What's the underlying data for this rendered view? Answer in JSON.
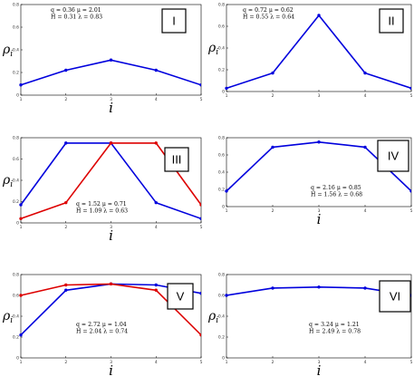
{
  "chart_data": [
    {
      "type": "line",
      "panel_label": "I",
      "xlabel": "i",
      "ylabel": "ρi",
      "x": [
        1,
        2,
        3,
        4,
        5
      ],
      "xticks": [
        "1",
        "2",
        "3",
        "4",
        "5"
      ],
      "yticks": [
        "0",
        "0.2",
        "0.4",
        "0.6",
        "0.8"
      ],
      "ylim": [
        0,
        0.8
      ],
      "params": [
        "q = 0.36   μ = 2.01",
        "H = 0.31   λ = 0.83"
      ],
      "series": [
        {
          "color": "#0000dd",
          "values": [
            0.09,
            0.22,
            0.31,
            0.22,
            0.09
          ]
        }
      ]
    },
    {
      "type": "line",
      "panel_label": "II",
      "xlabel": "",
      "ylabel": "ρi",
      "x": [
        1,
        2,
        3,
        4,
        5
      ],
      "xticks": [
        "1",
        "2",
        "3",
        "4",
        "5"
      ],
      "yticks": [
        "0",
        "0.2",
        "0.4",
        "0.6",
        "0.8"
      ],
      "ylim": [
        0,
        0.8
      ],
      "params": [
        "q = 0.72   μ = 0.62",
        "H = 0.55   λ = 0.64"
      ],
      "series": [
        {
          "color": "#0000dd",
          "values": [
            0.03,
            0.17,
            0.7,
            0.17,
            0.03
          ]
        }
      ]
    },
    {
      "type": "line",
      "panel_label": "III",
      "xlabel": "i",
      "ylabel": "ρi",
      "x": [
        1,
        2,
        3,
        4,
        5
      ],
      "xticks": [
        "1",
        "2",
        "3",
        "4",
        "5"
      ],
      "yticks": [
        "0",
        "0.2",
        "0.4",
        "0.6",
        "0.8"
      ],
      "ylim": [
        0,
        0.8
      ],
      "params": [
        "q = 1.52   μ = 0.71",
        "H = 1.09   λ = 0.63"
      ],
      "series": [
        {
          "color": "#0000dd",
          "values": [
            0.17,
            0.75,
            0.75,
            0.19,
            0.04
          ]
        },
        {
          "color": "#dd0000",
          "values": [
            0.04,
            0.19,
            0.75,
            0.75,
            0.17
          ]
        }
      ]
    },
    {
      "type": "line",
      "panel_label": "IV",
      "xlabel": "i",
      "ylabel": "",
      "x": [
        1,
        2,
        3,
        4,
        5
      ],
      "xticks": [
        "1",
        "2",
        "3",
        "4",
        "5"
      ],
      "yticks": [
        "0",
        "0.2",
        "0.4",
        "0.6",
        "0.8"
      ],
      "ylim": [
        0,
        0.8
      ],
      "params": [
        "q = 2.16   μ = 0.85",
        "H = 1.56   λ = 0.68"
      ],
      "series": [
        {
          "color": "#0000dd",
          "values": [
            0.18,
            0.69,
            0.75,
            0.69,
            0.18
          ]
        }
      ]
    },
    {
      "type": "line",
      "panel_label": "V",
      "xlabel": "i",
      "ylabel": "ρi",
      "x": [
        1,
        2,
        3,
        4,
        5,
        5.3
      ],
      "xticks": [
        "1",
        "2",
        "3",
        "4",
        "5"
      ],
      "yticks": [
        "0",
        "0.2",
        "0.4",
        "0.6",
        "0.8"
      ],
      "ylim": [
        0,
        0.8
      ],
      "params": [
        "q = 2.72   μ = 1.04",
        "H = 2.04   λ = 0.74"
      ],
      "series": [
        {
          "color": "#0000dd",
          "values": [
            0.22,
            0.65,
            0.71,
            0.7,
            0.62,
            0.6
          ]
        },
        {
          "color": "#dd0000",
          "values": [
            0.6,
            0.7,
            0.71,
            0.65,
            0.22,
            null
          ]
        }
      ]
    },
    {
      "type": "line",
      "panel_label": "VI",
      "xlabel": "i",
      "ylabel": "ρi",
      "x": [
        1,
        2,
        3,
        4,
        5
      ],
      "xticks": [
        "1",
        "2",
        "3",
        "4",
        "5"
      ],
      "yticks": [
        "0",
        "0.2",
        "0.4",
        "0.6",
        "0.8"
      ],
      "ylim": [
        0,
        0.8
      ],
      "params": [
        "q = 3.24   μ = 1.21",
        "H = 2.49   λ = 0.78"
      ],
      "series": [
        {
          "color": "#0000dd",
          "values": [
            0.6,
            0.67,
            0.68,
            0.67,
            0.6
          ]
        }
      ]
    }
  ]
}
